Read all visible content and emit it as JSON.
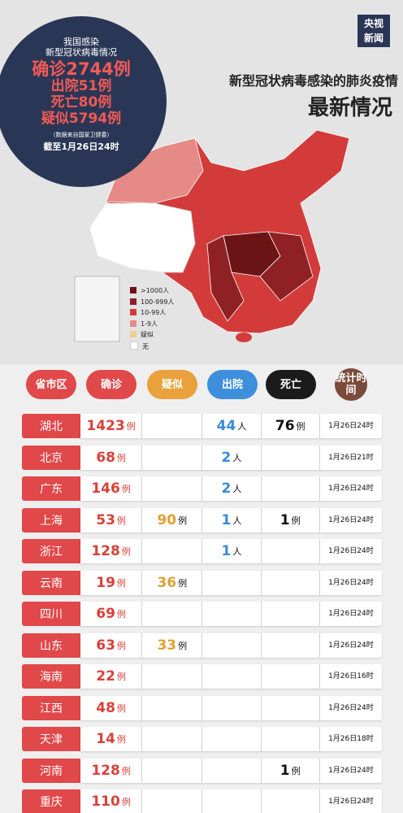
{
  "logo": [
    "央视",
    "新闻"
  ],
  "header": {
    "title": "新型冠状病毒感染的肺炎疫情",
    "subtitle": "最新情况"
  },
  "summary": {
    "lines": [
      "我国感染",
      "新型冠状病毒情况",
      "确诊2744例",
      "出院51例",
      "死亡80例",
      "疑似5794例",
      "（数据来自国家卫健委）",
      "截至1月26日24时"
    ]
  },
  "legend": [
    {
      "label": ">1000人",
      "color": "#6b1416"
    },
    {
      "label": "100-999人",
      "color": "#8f2024"
    },
    {
      "label": "10-99人",
      "color": "#d33b3b"
    },
    {
      "label": "1-9人",
      "color": "#e58a86"
    },
    {
      "label": "疑似",
      "color": "#f2cf8a"
    },
    {
      "label": "无",
      "color": "#ffffff"
    }
  ],
  "table": {
    "columns": [
      {
        "label": "省市区",
        "color": "#e0484a"
      },
      {
        "label": "确诊",
        "color": "#e0484a"
      },
      {
        "label": "疑似",
        "color": "#e9a13b"
      },
      {
        "label": "出院",
        "color": "#3d8fdc"
      },
      {
        "label": "死亡",
        "color": "#1b1b1b"
      },
      {
        "label": "统计时间",
        "color": "#7a4a3a"
      }
    ],
    "rows": [
      {
        "region": "湖北",
        "confirmed": {
          "value": 1423,
          "unit": "例"
        },
        "suspected": null,
        "discharged": {
          "value": 44,
          "unit": "人"
        },
        "deaths": {
          "value": 76,
          "unit": "例"
        },
        "time": "1月26日24时"
      },
      {
        "region": "北京",
        "confirmed": {
          "value": 68,
          "unit": "例"
        },
        "suspected": null,
        "discharged": {
          "value": 2,
          "unit": "人"
        },
        "deaths": null,
        "time": "1月26日21时"
      },
      {
        "region": "广东",
        "confirmed": {
          "value": 146,
          "unit": "例"
        },
        "suspected": null,
        "discharged": {
          "value": 2,
          "unit": "人"
        },
        "deaths": null,
        "time": "1月26日24时"
      },
      {
        "region": "上海",
        "confirmed": {
          "value": 53,
          "unit": "例"
        },
        "suspected": {
          "value": 90,
          "unit": "例"
        },
        "discharged": {
          "value": 1,
          "unit": "人"
        },
        "deaths": {
          "value": 1,
          "unit": "例"
        },
        "time": "1月26日24时"
      },
      {
        "region": "浙江",
        "confirmed": {
          "value": 128,
          "unit": "例"
        },
        "suspected": null,
        "discharged": {
          "value": 1,
          "unit": "人"
        },
        "deaths": null,
        "time": "1月26日24时"
      },
      {
        "region": "云南",
        "confirmed": {
          "value": 19,
          "unit": "例"
        },
        "suspected": {
          "value": 36,
          "unit": "例"
        },
        "discharged": null,
        "deaths": null,
        "time": "1月26日24时"
      },
      {
        "region": "四川",
        "confirmed": {
          "value": 69,
          "unit": "例"
        },
        "suspected": null,
        "discharged": null,
        "deaths": null,
        "time": "1月26日24时"
      },
      {
        "region": "山东",
        "confirmed": {
          "value": 63,
          "unit": "例"
        },
        "suspected": {
          "value": 33,
          "unit": "例"
        },
        "discharged": null,
        "deaths": null,
        "time": "1月26日24时"
      },
      {
        "region": "海南",
        "confirmed": {
          "value": 22,
          "unit": "例"
        },
        "suspected": null,
        "discharged": null,
        "deaths": null,
        "time": "1月26日16时"
      },
      {
        "region": "江西",
        "confirmed": {
          "value": 48,
          "unit": "例"
        },
        "suspected": null,
        "discharged": null,
        "deaths": null,
        "time": "1月26日24时"
      },
      {
        "region": "天津",
        "confirmed": {
          "value": 14,
          "unit": "例"
        },
        "suspected": null,
        "discharged": null,
        "deaths": null,
        "time": "1月26日18时"
      },
      {
        "region": "河南",
        "confirmed": {
          "value": 128,
          "unit": "例"
        },
        "suspected": null,
        "discharged": null,
        "deaths": {
          "value": 1,
          "unit": "例"
        },
        "time": "1月26日24时"
      },
      {
        "region": "重庆",
        "confirmed": {
          "value": 110,
          "unit": "例"
        },
        "suspected": null,
        "discharged": null,
        "deaths": null,
        "time": "1月26日24时"
      }
    ]
  }
}
